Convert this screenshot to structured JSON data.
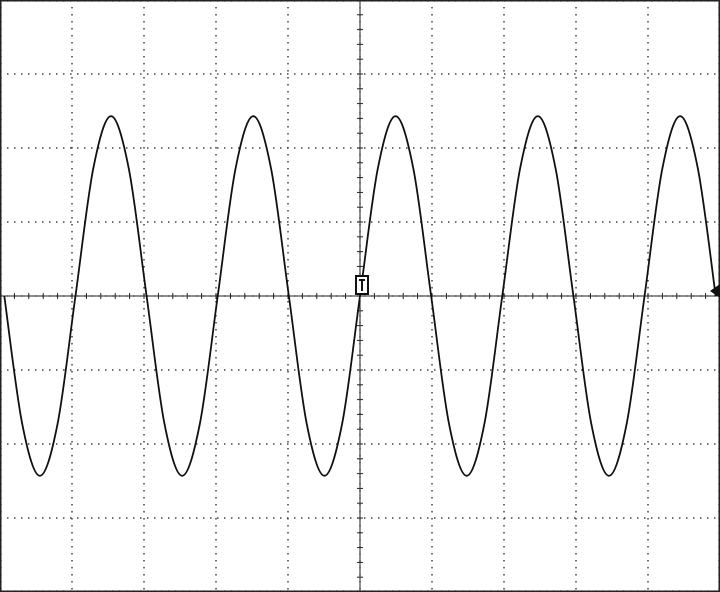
{
  "chart_data": {
    "type": "line",
    "x": [
      -4.94,
      -4.693,
      -4.446,
      -4.199,
      -3.952,
      -3.705,
      -3.458,
      -3.211,
      -2.964,
      -2.717,
      -2.47,
      -2.223,
      -1.976,
      -1.729,
      -1.482,
      -1.235,
      -0.988,
      -0.741,
      -0.494,
      -0.247,
      0,
      0.247,
      0.494,
      0.741,
      0.988,
      1.235,
      1.482,
      1.729,
      1.976,
      2.223,
      2.47,
      2.717,
      2.964,
      3.211,
      3.458,
      3.705,
      3.952,
      4.199,
      4.446,
      4.693,
      4.94
    ],
    "values": [
      0,
      -1.72,
      -2.43,
      -1.72,
      0,
      1.72,
      2.43,
      1.72,
      0,
      -1.72,
      -2.43,
      -1.72,
      0,
      1.72,
      2.43,
      1.72,
      0,
      -1.72,
      -2.43,
      -1.72,
      0,
      1.72,
      2.43,
      1.72,
      0,
      -1.72,
      -2.43,
      -1.72,
      0,
      1.72,
      2.43,
      1.72,
      0,
      -1.72,
      -2.43,
      -1.72,
      0,
      1.72,
      2.43,
      1.72,
      0
    ],
    "color": "#111111",
    "xlim": [
      -5,
      5
    ],
    "ylim": [
      -4,
      4
    ],
    "xticks": [
      -5,
      -4,
      -3,
      -2,
      -1,
      0,
      1,
      2,
      3,
      4,
      5
    ],
    "yticks": [
      -4,
      -3,
      -2,
      -1,
      0,
      1,
      2,
      3,
      4
    ],
    "grid": true
  }
}
